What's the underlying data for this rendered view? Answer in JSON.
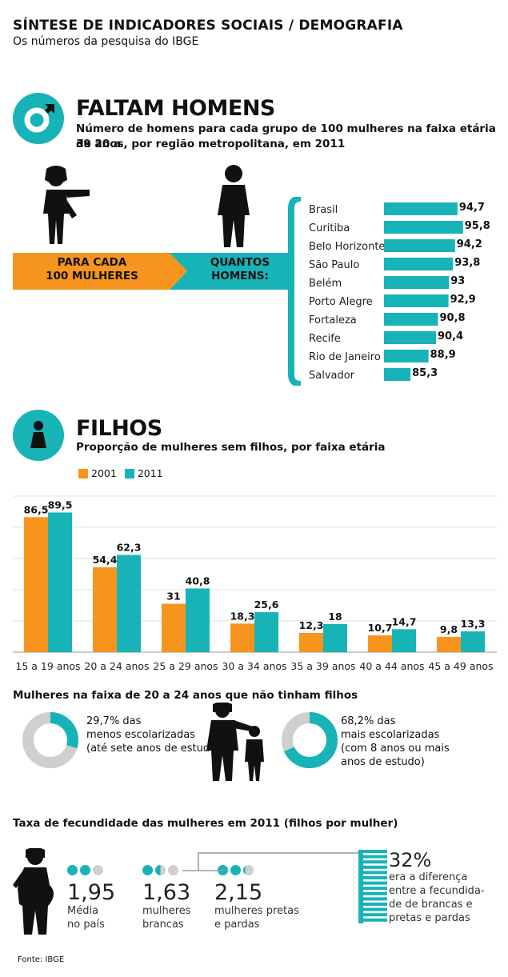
{
  "header": {
    "title": "SÍNTESE DE INDICADORES SOCIAIS / DEMOGRAFIA",
    "subtitle": "Os números da pesquisa do IBGE"
  },
  "colors": {
    "teal": "#17b3b6",
    "orange": "#f7941d",
    "gray": "#cfcfcf"
  },
  "section1": {
    "title": "FALTAM HOMENS",
    "subtitle_line1": "Número de homens para cada grupo de 100 mulheres na faixa etária de 20 a",
    "subtitle_line2": "39 anos, por região metropolitana, em 2011",
    "arrow_left": "PARA CADA\n100 MULHERES",
    "arrow_left_1": "PARA CADA",
    "arrow_left_2": "100 MULHERES",
    "arrow_right_1": "QUANTOS",
    "arrow_right_2": "HOMENS:"
  },
  "section2": {
    "title": "FILHOS",
    "subtitle": "Proporção de mulheres sem filhos, por faixa etária",
    "legend": [
      "2001",
      "2011"
    ]
  },
  "chart_data": [
    {
      "type": "bar",
      "orientation": "horizontal",
      "categories": [
        "Brasil",
        "Curitiba",
        "Belo Horizonte",
        "São Paulo",
        "Belém",
        "Porto Alegre",
        "Fortaleza",
        "Recife",
        "Rio de Janeiro",
        "Salvador"
      ],
      "values": [
        94.7,
        95.8,
        94.2,
        93.8,
        93,
        92.9,
        90.8,
        90.4,
        88.9,
        85.3
      ],
      "value_labels": [
        "94,7",
        "95,8",
        "94,2",
        "93,8",
        "93",
        "92,9",
        "90,8",
        "90,4",
        "88,9",
        "85,3"
      ]
    },
    {
      "type": "bar",
      "categories": [
        "15 a 19 anos",
        "20 a 24 anos",
        "25 a 29 anos",
        "30 a 34 anos",
        "35 a 39 anos",
        "40 a 44 anos",
        "45 a 49 anos"
      ],
      "series": [
        {
          "name": "2001",
          "values": [
            86.5,
            54.4,
            31,
            18.3,
            12.3,
            10.7,
            9.8
          ],
          "labels": [
            "86,5",
            "54,4",
            "31",
            "18,3",
            "12,3",
            "10,7",
            "9,8"
          ]
        },
        {
          "name": "2011",
          "values": [
            89.5,
            62.3,
            40.8,
            25.6,
            18,
            14.7,
            13.3
          ],
          "labels": [
            "89,5",
            "62,3",
            "40,8",
            "25,6",
            "18",
            "14,7",
            "13,3"
          ]
        }
      ],
      "ylim": [
        0,
        100
      ],
      "grid": true
    }
  ],
  "donuts": {
    "title": "Mulheres na faixa de 20 a 24 anos que não tinham filhos",
    "left": {
      "value": 29.7,
      "line1": "29,7% das",
      "line2": "menos escolarizadas",
      "line3": "(até sete anos de estudo)"
    },
    "right": {
      "value": 68.2,
      "line1": "68,2% das",
      "line2": "mais escolarizadas",
      "line3": "(com 8 anos ou mais",
      "line4": "anos de estudo)"
    }
  },
  "fecundidade": {
    "title": "Taxa de fecundidade das mulheres em 2011 (filhos por mulher)",
    "items": [
      {
        "value": 1.95,
        "num": "1,95",
        "line1": "Média",
        "line2": "no país"
      },
      {
        "value": 1.63,
        "num": "1,63",
        "line1": "mulheres",
        "line2": "brancas"
      },
      {
        "value": 2.15,
        "num": "2,15",
        "line1": "mulheres pretas",
        "line2": "e pardas"
      }
    ],
    "diff": {
      "pct": "32%",
      "line1": "era a diferença",
      "line2": "entre a fecundida-",
      "line3": "de de brancas e",
      "line4": "pretas e pardas"
    }
  },
  "footer": {
    "source": "Fonte: IBGE"
  }
}
